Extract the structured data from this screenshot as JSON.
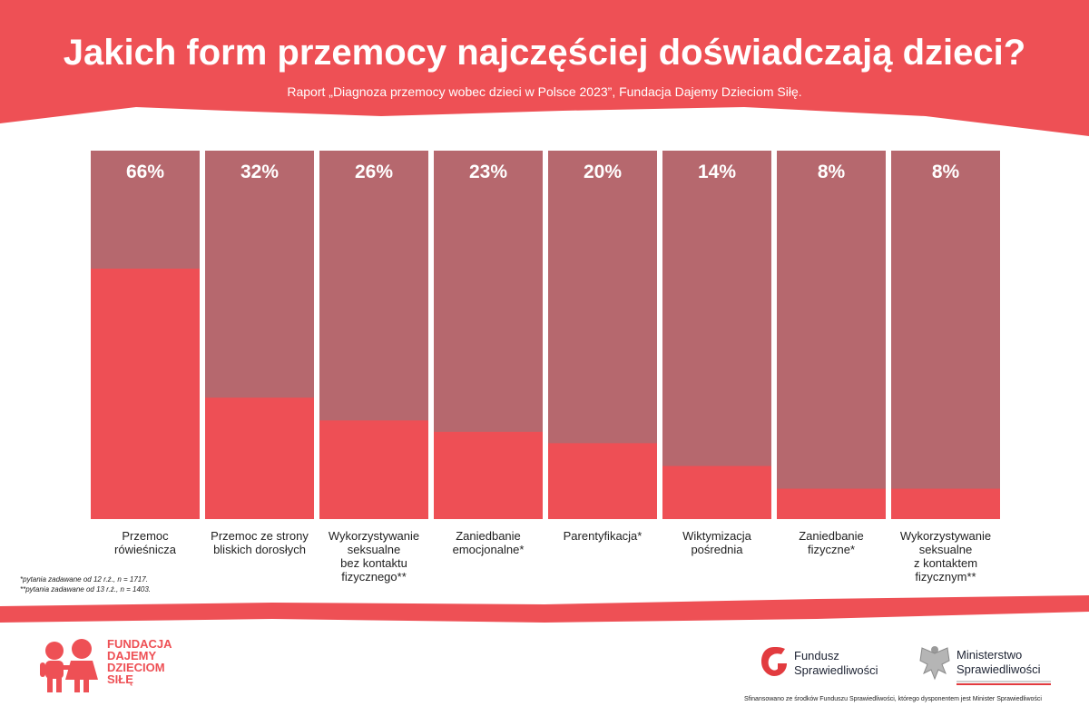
{
  "header": {
    "title": "Jakich form przemocy najczęściej doświadczają dzieci?",
    "subtitle": "Raport „Diagnoza przemocy wobec dzieci w Polsce 2023”, Fundacja Dajemy Dzieciom Siłę."
  },
  "colors": {
    "accent": "#ee5055",
    "bar_fill": "#ee4f55",
    "bar_background": "#a94d55",
    "text_dark": "#222222"
  },
  "chart_data": {
    "type": "bar",
    "title": "Jakich form przemocy najczęściej doświadczają dzieci?",
    "ylim": [
      0,
      100
    ],
    "grid": false,
    "categories": [
      "Przemoc rówieśnicza",
      "Przemoc ze strony bliskich dorosłych",
      "Wykorzystywanie seksualne bez kontaktu fizycznego**",
      "Zaniedbanie emocjonalne*",
      "Parentyfikacja*",
      "Wiktymizacja pośrednia",
      "Zaniedbanie fizyczne*",
      "Wykorzystywanie seksualne z kontaktem fizycznym**"
    ],
    "values": [
      66,
      32,
      26,
      23,
      20,
      14,
      8,
      8
    ],
    "value_labels": [
      "66%",
      "32%",
      "26%",
      "23%",
      "20%",
      "14%",
      "8%",
      "8%"
    ]
  },
  "labels": [
    [
      "Przemoc",
      "rówieśnicza"
    ],
    [
      "Przemoc ze strony",
      "bliskich dorosłych"
    ],
    [
      "Wykorzystywanie",
      "seksualne",
      "bez kontaktu",
      "fizycznego**"
    ],
    [
      "Zaniedbanie",
      "emocjonalne*"
    ],
    [
      "Parentyfikacja*"
    ],
    [
      "Wiktymizacja",
      "pośrednia"
    ],
    [
      "Zaniedbanie",
      "fizyczne*"
    ],
    [
      "Wykorzystywanie",
      "seksualne",
      "z kontaktem",
      "fizycznym**"
    ]
  ],
  "footnotes": [
    "*pytania zadawane od 12 r.ż., n = 1717.",
    "**pytania zadawane od 13 r.ż., n = 1403."
  ],
  "logos": {
    "fundacja_lines": [
      "FUNDACJA",
      "DAJEMY",
      "DZIECIOM",
      "SIŁĘ"
    ],
    "fundusz_lines": [
      "Fundusz",
      "Sprawiedliwości"
    ],
    "ministerstwo_lines": [
      "Ministerstwo",
      "Sprawiedliwości"
    ]
  },
  "funding_note": "Sfinansowano ze środków Funduszu Sprawiedliwości, którego dysponentem jest Minister Sprawiedliwości"
}
